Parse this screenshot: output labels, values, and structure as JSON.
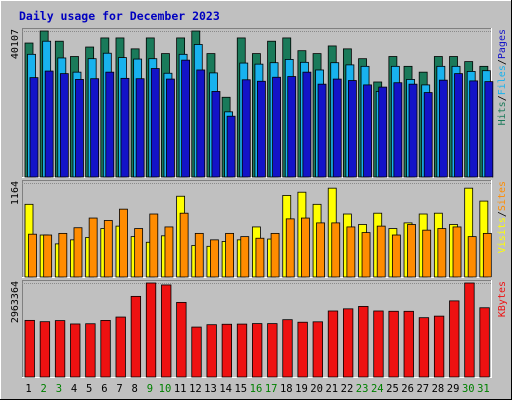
{
  "chart_data": {
    "type": "bar",
    "title": "Daily usage for December 2023",
    "days": [
      "1",
      "2",
      "3",
      "4",
      "5",
      "6",
      "7",
      "8",
      "9",
      "10",
      "11",
      "12",
      "13",
      "14",
      "15",
      "16",
      "17",
      "18",
      "19",
      "20",
      "21",
      "22",
      "23",
      "24",
      "25",
      "26",
      "27",
      "28",
      "29",
      "30",
      "31"
    ],
    "weekend_days": [
      "2",
      "3",
      "9",
      "10",
      "16",
      "17",
      "23",
      "24",
      "30",
      "31"
    ],
    "colors": {
      "hits": "#1a7a5a",
      "files": "#18b2ee",
      "pages": "#1313c8",
      "visits": "#ffff00",
      "sites": "#ff8c00",
      "kbytes": "#ee1111",
      "title": "#0000c0",
      "weekday_label": "#000000",
      "weekend_label": "#008000",
      "panel_bg": "#c0c0c0"
    },
    "panels": [
      {
        "name": "hits-files-pages",
        "axis_max_label": "40107",
        "max": 40107,
        "legend": [
          {
            "text": "Hits",
            "color": "#1a7a5a"
          },
          {
            "text": "Files",
            "color": "#18b2ee"
          },
          {
            "text": "Pages",
            "color": "#1313c8"
          }
        ],
        "series": [
          {
            "name": "Hits",
            "values": [
              36800,
              40100,
              37300,
              33100,
              35700,
              38200,
              38200,
              35200,
              38200,
              33900,
              38200,
              40100,
              33900,
              21900,
              38200,
              33900,
              37300,
              38200,
              34700,
              33900,
              36000,
              35200,
              32500,
              26100,
              33100,
              30400,
              28800,
              33100,
              33100,
              31700,
              30400
            ]
          },
          {
            "name": "Files",
            "values": [
              33700,
              37300,
              32700,
              28800,
              32500,
              34000,
              32800,
              32400,
              32500,
              28500,
              33700,
              36400,
              28600,
              17900,
              31300,
              31000,
              31400,
              32300,
              31500,
              29400,
              31400,
              30800,
              30400,
              23500,
              30400,
              26800,
              25300,
              30400,
              30400,
              29000,
              29200
            ]
          },
          {
            "name": "Pages",
            "values": [
              27300,
              29100,
              28400,
              26800,
              27000,
              28800,
              27100,
              27000,
              29800,
              26900,
              32100,
              29400,
              23500,
              16700,
              26700,
              26300,
              27400,
              27600,
              28800,
              25500,
              26900,
              26500,
              25300,
              24700,
              25900,
              25500,
              23200,
              26600,
              28400,
              26400,
              26200
            ]
          }
        ]
      },
      {
        "name": "visits-sites",
        "axis_max_label": "1164",
        "max": 1164,
        "legend": [
          {
            "text": "Visits",
            "color": "#ffff00"
          },
          {
            "text": "Sites",
            "color": "#ff8c00"
          }
        ],
        "series": [
          {
            "name": "Visits",
            "values": [
              900,
              520,
              410,
              460,
              490,
              600,
              630,
              500,
              430,
              510,
              1000,
              390,
              380,
              440,
              460,
              620,
              470,
              1010,
              1050,
              900,
              1100,
              780,
              650,
              790,
              600,
              670,
              780,
              790,
              650,
              1100,
              940
            ]
          },
          {
            "name": "Sites",
            "values": [
              530,
              520,
              540,
              610,
              730,
              700,
              840,
              600,
              780,
              620,
              790,
              540,
              460,
              540,
              500,
              480,
              540,
              720,
              730,
              670,
              670,
              620,
              550,
              630,
              520,
              650,
              580,
              600,
              620,
              500,
              540
            ]
          }
        ]
      },
      {
        "name": "kbytes",
        "axis_max_label": "2963364",
        "max": 2963364,
        "legend": [
          {
            "text": "KBytes",
            "color": "#ee1111"
          }
        ],
        "series": [
          {
            "name": "KBytes",
            "values": [
              1785000,
              1744000,
              1778000,
              1672000,
              1679000,
              1784000,
              1890000,
              2542000,
              2963000,
              2902000,
              2352000,
              1574000,
              1649000,
              1663000,
              1668000,
              1684000,
              1683000,
              1807000,
              1727000,
              1740000,
              2081000,
              2149000,
              2225000,
              2081000,
              2072000,
              2071000,
              1870000,
              1919000,
              2400000,
              2963000,
              2183000
            ]
          }
        ]
      }
    ]
  }
}
